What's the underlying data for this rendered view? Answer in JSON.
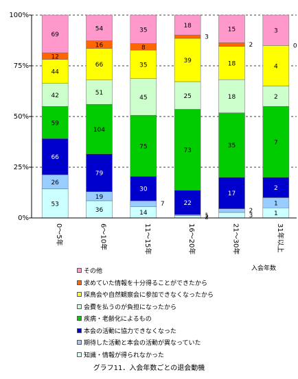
{
  "chart_data": {
    "type": "bar",
    "stacked": "percent",
    "categories": [
      "0〜5年",
      "6〜10年",
      "11〜15年",
      "16〜20年",
      "21〜30年",
      "31年以上"
    ],
    "xlabel": "入会年数",
    "ylim": [
      0,
      100
    ],
    "yticks": [
      "0%",
      "25%",
      "50%",
      "75%",
      "100%"
    ],
    "grid": "horizontal dashed",
    "legend_position": "bottom",
    "title": "グラフ11．入会年数ごとの退会動機",
    "series": [
      {
        "name": "知識・情報が得られなかった",
        "color": "#ccffff",
        "values": [
          53,
          36,
          14,
          2,
          3,
          1
        ]
      },
      {
        "name": "期待した活動と本会の活動が異なっていた",
        "color": "#99ccff",
        "values": [
          26,
          19,
          7,
          1,
          2,
          1
        ]
      },
      {
        "name": "本会の活動に協力できなくなった",
        "color": "#0000cc",
        "values": [
          66,
          79,
          30,
          22,
          17,
          2
        ]
      },
      {
        "name": "疾病・老齢化によるもの",
        "color": "#00cc00",
        "values": [
          59,
          104,
          75,
          73,
          35,
          7
        ]
      },
      {
        "name": "会費を払うのが負担になったから",
        "color": "#ccffcc",
        "values": [
          42,
          51,
          45,
          25,
          18,
          2
        ]
      },
      {
        "name": "探鳥会や自然観察会に参加できなくなったから",
        "color": "#ffff00",
        "values": [
          44,
          66,
          35,
          39,
          18,
          4
        ]
      },
      {
        "name": "求めていた情報を十分得ることができたから",
        "color": "#ff6600",
        "values": [
          12,
          16,
          8,
          3,
          2,
          0
        ]
      },
      {
        "name": "その他",
        "color": "#ff99cc",
        "values": [
          69,
          54,
          35,
          18,
          15,
          3
        ]
      }
    ]
  }
}
